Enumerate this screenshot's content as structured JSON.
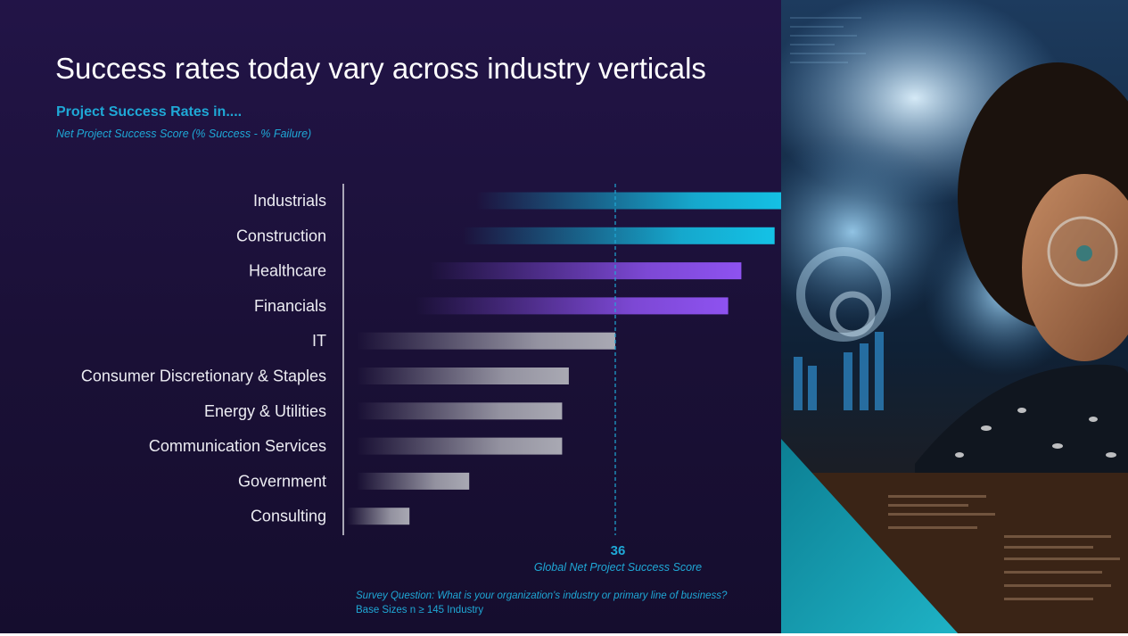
{
  "slide": {
    "title": "Success rates today vary across industry verticals",
    "subtitle": "Project Success Rates in....",
    "subtitle_note": "Net Project Success Score (% Success - %  Failure)",
    "footnote_question": "Survey Question: What is your organization's industry or primary line of business?",
    "footnote_base": "Base Sizes n ≥ 145 Industry"
  },
  "chart_data": {
    "type": "bar",
    "orientation": "horizontal",
    "categories": [
      "Industrials",
      "Construction",
      "Healthcare",
      "Financials",
      "IT",
      "Consumer Discretionary & Staples",
      "Energy & Utilities",
      "Communication Services",
      "Government",
      "Consulting"
    ],
    "values": [
      62,
      60,
      55,
      53,
      36,
      29,
      28,
      28,
      14,
      5
    ],
    "reference_line": {
      "value": 36,
      "value_label": "36",
      "label": "Global Net Project Success Score"
    },
    "xlim": [
      -3,
      78
    ],
    "grid": false,
    "legend": "none",
    "colors": {
      "teal": "#14c2e6",
      "purple": "#8e52f0",
      "gray": "#a9a9b3",
      "reference": "#1fa8d6",
      "axis": "#d8d8e0"
    },
    "color_groups": [
      "teal",
      "teal",
      "purple",
      "purple",
      "gray",
      "gray",
      "gray",
      "gray",
      "gray",
      "gray"
    ]
  }
}
